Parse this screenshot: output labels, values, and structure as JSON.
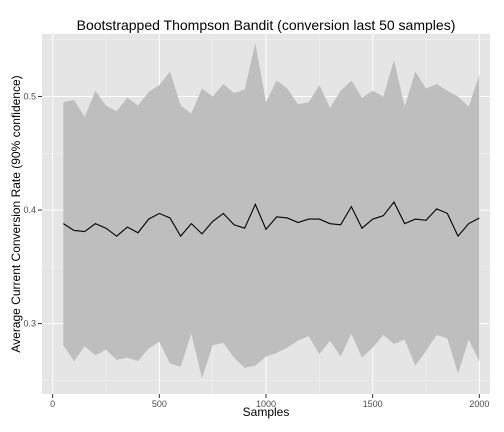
{
  "chart_data": {
    "type": "line",
    "title": "Bootstrapped Thompson Bandit (conversion last 50 samples)",
    "xlabel": "Samples",
    "ylabel": "Average Current Conversion Rate (90% confidence)",
    "xlim": [
      -50,
      2050
    ],
    "ylim": [
      0.238,
      0.555
    ],
    "x_ticks": [
      0,
      500,
      1000,
      1500,
      2000
    ],
    "x_tick_labels": [
      "0",
      "500",
      "1000",
      "1500",
      "2000"
    ],
    "y_ticks": [
      0.3,
      0.4,
      0.5
    ],
    "y_tick_labels": [
      "0.3",
      "0.4",
      "0.5"
    ],
    "grid": true,
    "legend": "none",
    "colors": {
      "panel_bg": "#e5e5e5",
      "grid_major": "#ffffff",
      "ribbon": "#bebebe",
      "line": "#000000"
    },
    "x": [
      50,
      100,
      150,
      200,
      250,
      300,
      350,
      400,
      450,
      500,
      550,
      600,
      650,
      700,
      750,
      800,
      850,
      900,
      950,
      1000,
      1050,
      1100,
      1150,
      1200,
      1250,
      1300,
      1350,
      1400,
      1450,
      1500,
      1550,
      1600,
      1650,
      1700,
      1750,
      1800,
      1850,
      1900,
      1950,
      2000
    ],
    "series": [
      {
        "values": [
          0.388,
          0.382,
          0.381,
          0.388,
          0.384,
          0.377,
          0.385,
          0.38,
          0.392,
          0.397,
          0.393,
          0.377,
          0.388,
          0.379,
          0.39,
          0.397,
          0.387,
          0.384,
          0.405,
          0.383,
          0.394,
          0.393,
          0.389,
          0.392,
          0.392,
          0.388,
          0.387,
          0.403,
          0.384,
          0.392,
          0.395,
          0.407,
          0.388,
          0.392,
          0.391,
          0.401,
          0.397,
          0.377,
          0.388,
          0.393
        ],
        "lower": [
          0.281,
          0.267,
          0.28,
          0.272,
          0.277,
          0.268,
          0.27,
          0.267,
          0.278,
          0.284,
          0.265,
          0.262,
          0.291,
          0.252,
          0.281,
          0.283,
          0.27,
          0.261,
          0.263,
          0.271,
          0.274,
          0.279,
          0.285,
          0.289,
          0.273,
          0.285,
          0.271,
          0.291,
          0.27,
          0.279,
          0.29,
          0.282,
          0.286,
          0.263,
          0.276,
          0.29,
          0.287,
          0.256,
          0.286,
          0.267
        ],
        "upper": [
          0.495,
          0.497,
          0.482,
          0.505,
          0.492,
          0.487,
          0.499,
          0.492,
          0.504,
          0.51,
          0.522,
          0.492,
          0.485,
          0.507,
          0.5,
          0.511,
          0.503,
          0.506,
          0.547,
          0.495,
          0.514,
          0.507,
          0.493,
          0.495,
          0.51,
          0.49,
          0.505,
          0.514,
          0.499,
          0.505,
          0.5,
          0.532,
          0.491,
          0.522,
          0.507,
          0.511,
          0.505,
          0.5,
          0.491,
          0.519
        ]
      }
    ]
  }
}
